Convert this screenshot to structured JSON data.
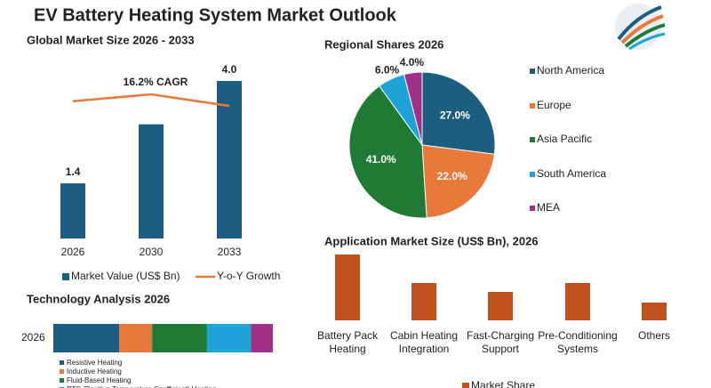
{
  "title": "EV Battery Heating System Market Outlook",
  "chart_data": [
    {
      "type": "bar",
      "title": "Global Market Size 2026 - 2033",
      "annotation": "16.2% CAGR",
      "categories": [
        "2026",
        "2030",
        "2033"
      ],
      "series": [
        {
          "name": "Market Value (US$ Bn)",
          "color": "#1b5e80",
          "values": [
            1.4,
            2.9,
            4.0
          ],
          "value_labels": [
            "1.4",
            null,
            "4.0"
          ]
        },
        {
          "name": "Y-o-Y Growth",
          "type": "line",
          "color": "#e8793a",
          "values": [
            12,
            15,
            10
          ]
        }
      ]
    },
    {
      "type": "pie",
      "title": "Regional Shares 2026",
      "categories": [
        "North America",
        "Europe",
        "Asia Pacific",
        "South America",
        "MEA"
      ],
      "values": [
        27,
        22,
        41,
        6,
        4
      ],
      "value_labels": [
        "27.0%",
        "22.0%",
        "41.0%",
        "6.0%",
        "4.0%"
      ],
      "colors": [
        "#1b5e80",
        "#e8793a",
        "#1e7a34",
        "#1ea3d8",
        "#a0308a"
      ]
    },
    {
      "type": "bar",
      "title": "Application Market Size (US$ Bn), 2026",
      "categories": [
        "Battery Pack Heating",
        "Cabin Heating Integration",
        "Fast-Charging Support",
        "Pre-Conditioning Systems",
        "Others"
      ],
      "series": [
        {
          "name": "Market Share",
          "color": "#c0521f",
          "values": [
            3.7,
            2.1,
            1.6,
            2.1,
            1.0
          ]
        }
      ]
    },
    {
      "type": "stacked_bar",
      "title": "Technology Analysis 2026",
      "categories": [
        "2026"
      ],
      "series": [
        {
          "name": "Resistive Heating",
          "color": "#1b5e80",
          "values": [
            30
          ]
        },
        {
          "name": "Inductive Heating",
          "color": "#e8793a",
          "values": [
            15
          ]
        },
        {
          "name": "Fluid-Based Heating",
          "color": "#1e7a34",
          "values": [
            25
          ]
        },
        {
          "name": "PTC (Positive Temperature Coefficient) Heating",
          "color": "#1ea3d8",
          "values": [
            20
          ]
        },
        {
          "color": "#a0308a",
          "values": [
            10
          ]
        }
      ]
    }
  ]
}
